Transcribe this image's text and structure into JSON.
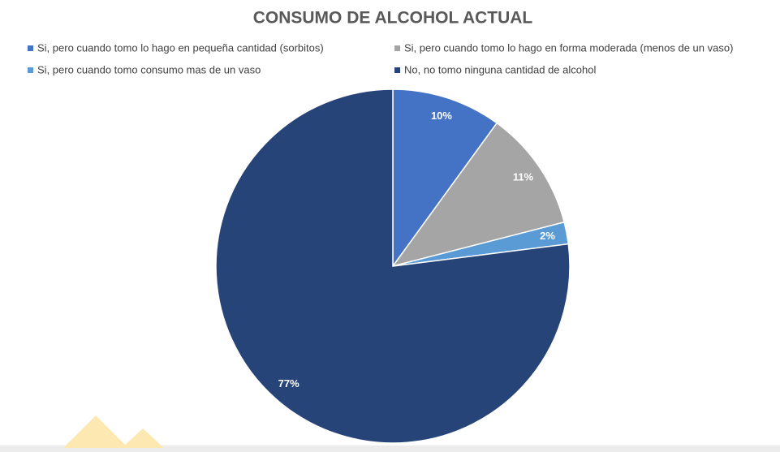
{
  "chart_data": {
    "type": "pie",
    "title": "CONSUMO DE ALCOHOL ACTUAL",
    "categories": [
      "Si, pero cuando tomo lo hago en pequeña cantidad (sorbitos)",
      "Si, pero cuando tomo lo hago en forma moderada (menos de un vaso)",
      "Si, pero cuando tomo consumo mas de un vaso",
      "No, no tomo ninguna cantidad de alcohol"
    ],
    "values": [
      10,
      11,
      2,
      77
    ],
    "value_labels": [
      "10%",
      "11%",
      "2%",
      "77%"
    ],
    "colors": [
      "#4472c4",
      "#a5a5a5",
      "#5b9bd5",
      "#264478"
    ]
  }
}
